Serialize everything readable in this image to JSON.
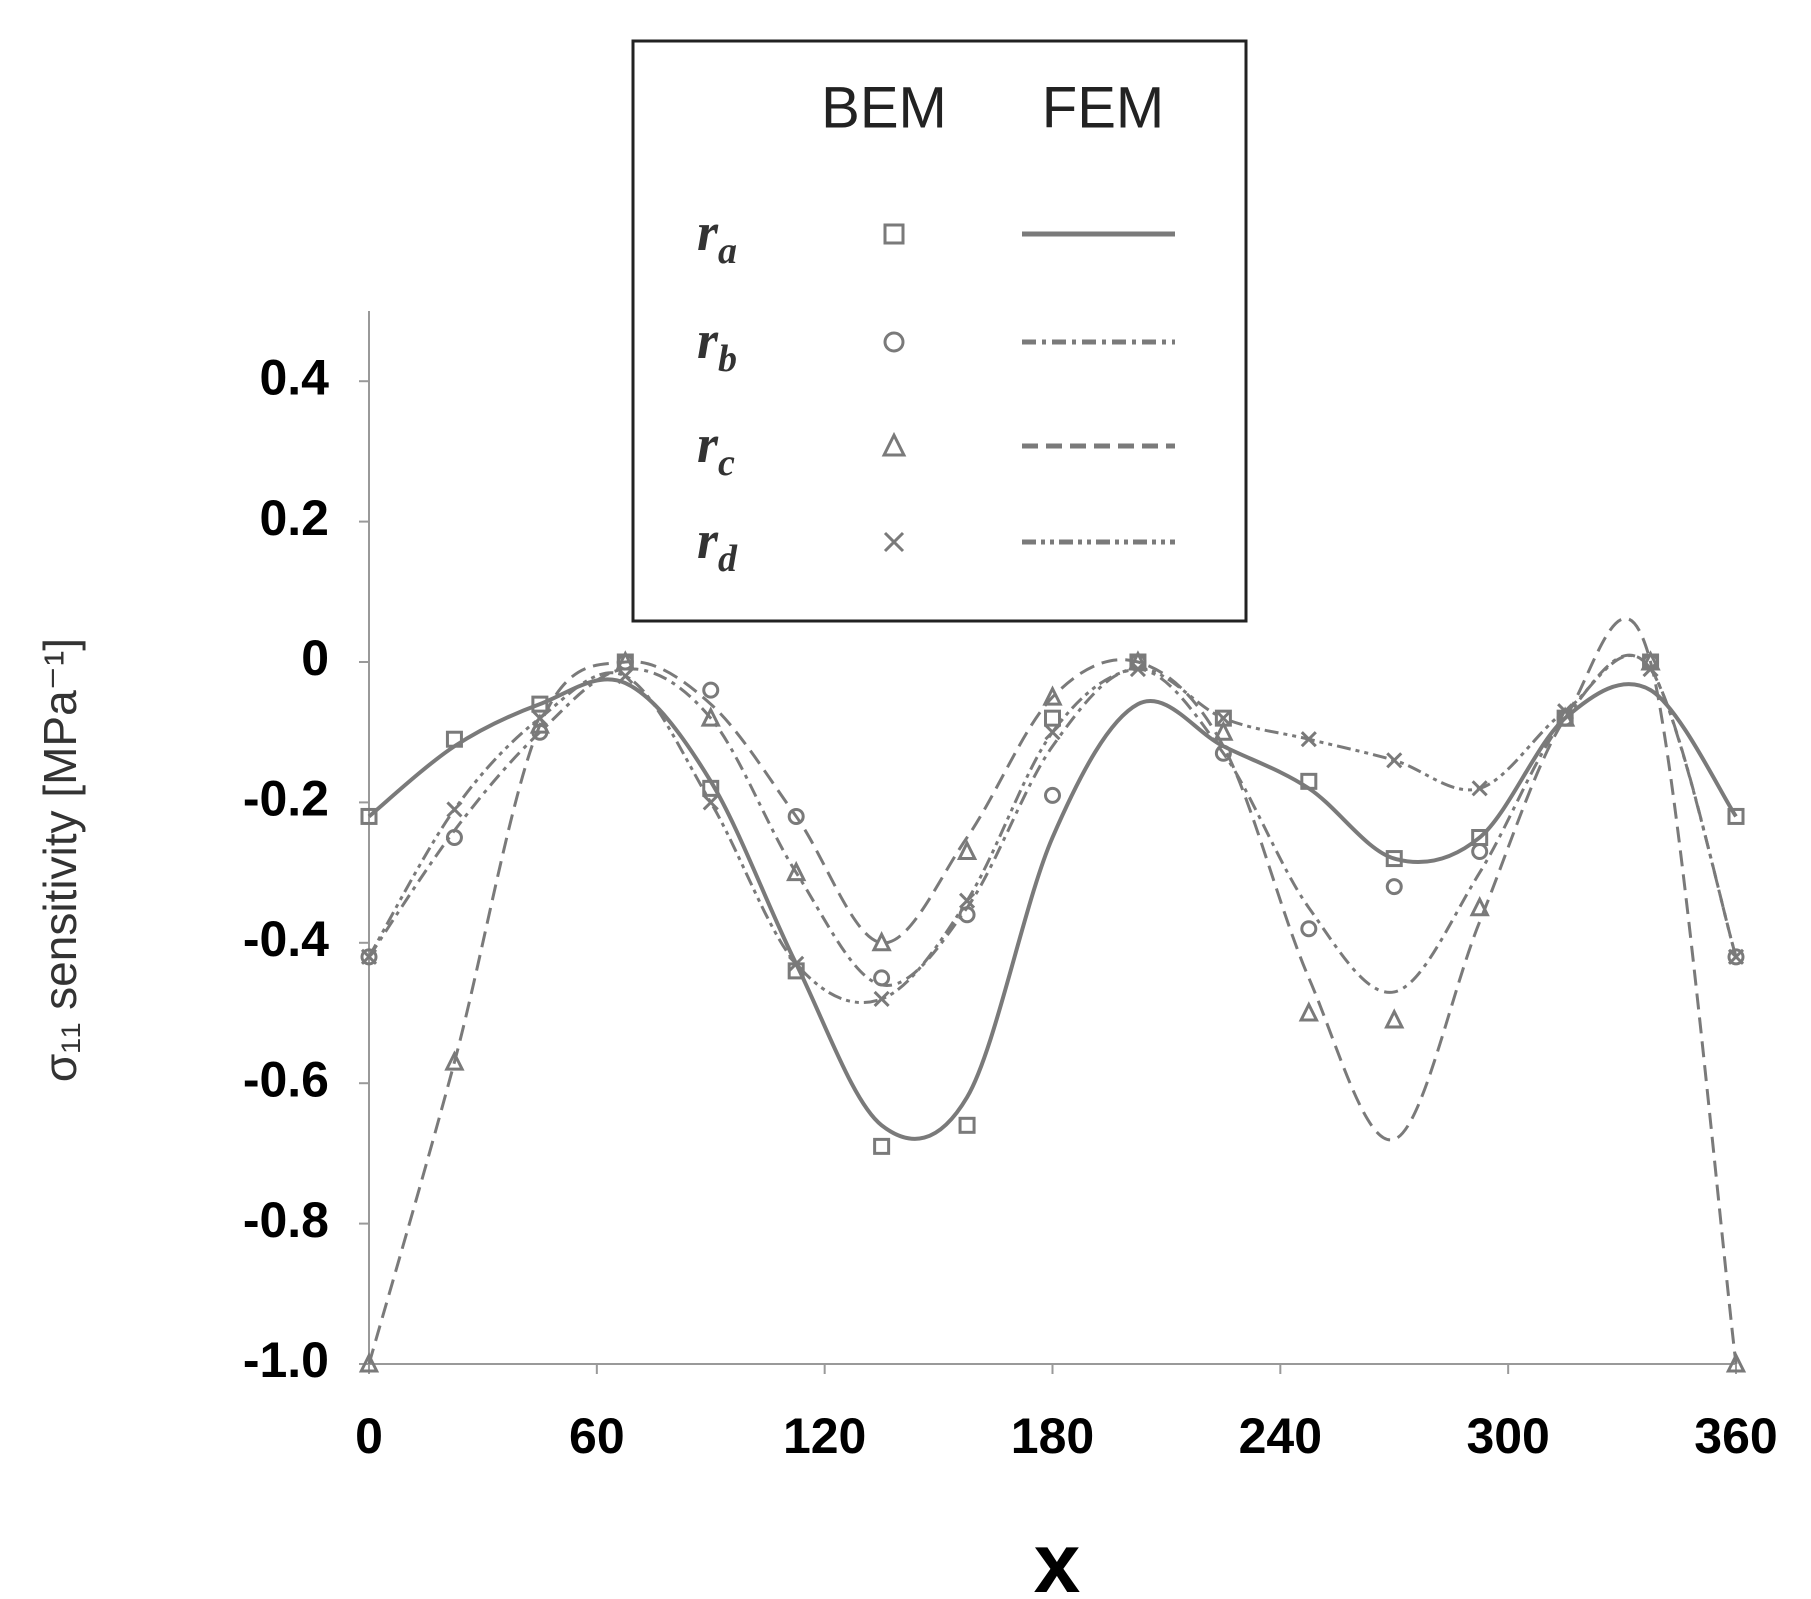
{
  "chart_data": {
    "type": "line",
    "ylabel": "σ₁₁ sensitivity [MPa⁻¹]",
    "xlabel": "x",
    "legend_columns": [
      "BEM",
      "FEM"
    ],
    "x": [
      0,
      22.5,
      45,
      67.5,
      90,
      112.5,
      135,
      157.5,
      180,
      202.5,
      225,
      247.5,
      270,
      292.5,
      315,
      337.5,
      360
    ],
    "xlim": [
      0,
      360
    ],
    "xticks": [
      0,
      60,
      120,
      180,
      240,
      300,
      360
    ],
    "ylim": [
      -1.0,
      0.5
    ],
    "yticks": [
      0.4,
      0.2,
      0,
      -0.2,
      -0.4,
      -0.6,
      -0.8,
      {
        "value": -1,
        "label": "-1.0"
      }
    ],
    "color": "#7a7a7a",
    "series": [
      {
        "name": "ra",
        "marker": "square",
        "dash": "solid",
        "bem": [
          -0.22,
          -0.11,
          -0.06,
          0.0,
          -0.18,
          -0.44,
          -0.69,
          -0.66,
          -0.08,
          0.0,
          -0.08,
          -0.17,
          -0.28,
          -0.25,
          -0.08,
          0.0,
          -0.22
        ],
        "fem": [
          -0.22,
          -0.12,
          -0.06,
          -0.03,
          -0.17,
          -0.43,
          -0.66,
          -0.62,
          -0.25,
          -0.06,
          -0.12,
          -0.18,
          -0.28,
          -0.25,
          -0.08,
          -0.04,
          -0.22
        ]
      },
      {
        "name": "rb",
        "marker": "circle",
        "dash": "dashdot",
        "bem": [
          -0.42,
          -0.25,
          -0.1,
          0.0,
          -0.04,
          -0.22,
          -0.45,
          -0.36,
          -0.19,
          0.0,
          -0.13,
          -0.38,
          -0.32,
          -0.27,
          -0.08,
          0.0,
          -0.42
        ],
        "fem": [
          -0.42,
          -0.24,
          -0.1,
          -0.01,
          -0.08,
          -0.3,
          -0.46,
          -0.35,
          -0.12,
          -0.01,
          -0.13,
          -0.35,
          -0.47,
          -0.3,
          -0.08,
          -0.01,
          -0.42
        ]
      },
      {
        "name": "rc",
        "marker": "triangle",
        "dash": "dashed",
        "bem": [
          -1.0,
          -0.57,
          -0.09,
          0.0,
          -0.08,
          -0.3,
          -0.4,
          -0.27,
          -0.05,
          0.0,
          -0.1,
          -0.5,
          -0.51,
          -0.35,
          -0.08,
          0.0,
          -1.0
        ],
        "fem": [
          -1.0,
          -0.57,
          -0.09,
          0.0,
          -0.06,
          -0.22,
          -0.4,
          -0.25,
          -0.05,
          0.0,
          -0.12,
          -0.45,
          -0.68,
          -0.37,
          -0.08,
          0.0,
          -1.0
        ]
      },
      {
        "name": "rd",
        "marker": "cross",
        "dash": "dashdotdot",
        "bem": [
          -0.42,
          -0.21,
          -0.08,
          -0.02,
          -0.2,
          -0.43,
          -0.48,
          -0.34,
          -0.1,
          -0.01,
          -0.08,
          -0.11,
          -0.14,
          -0.18,
          -0.07,
          -0.01,
          -0.42
        ],
        "fem": [
          -0.42,
          -0.21,
          -0.08,
          -0.02,
          -0.2,
          -0.43,
          -0.48,
          -0.34,
          -0.1,
          -0.01,
          -0.08,
          -0.11,
          -0.14,
          -0.18,
          -0.07,
          -0.01,
          -0.42
        ]
      }
    ]
  }
}
